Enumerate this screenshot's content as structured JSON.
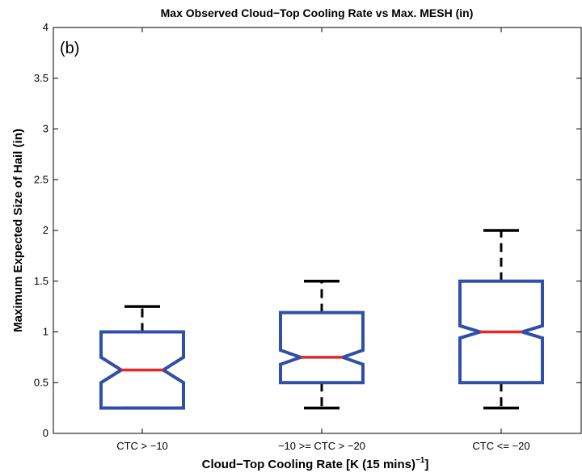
{
  "chart_data": {
    "type": "box",
    "title": "Max Observed Cloud−Top Cooling Rate vs Max. MESH (in)",
    "panel_label": "(b)",
    "xlabel_main": "Cloud−Top Cooling Rate [K (15 mins)",
    "xlabel_sup": "−1",
    "xlabel_end": "]",
    "ylabel": "Maximum Expected Size of Hail (in)",
    "ylim": [
      0,
      4
    ],
    "yticks": [
      "0",
      "0.5",
      "1",
      "1.5",
      "2",
      "2.5",
      "3",
      "3.5",
      "4"
    ],
    "categories": [
      "CTC > −10",
      "−10 >= CTC > −20",
      "CTC <= −20"
    ],
    "boxes": [
      {
        "whisker_low": 0.25,
        "q1": 0.25,
        "notch_low": 0.5,
        "median": 0.625,
        "notch_high": 0.75,
        "q3": 1.0,
        "whisker_high": 1.25
      },
      {
        "whisker_low": 0.25,
        "q1": 0.5,
        "notch_low": 0.68,
        "median": 0.75,
        "notch_high": 0.82,
        "q3": 1.19,
        "whisker_high": 1.5
      },
      {
        "whisker_low": 0.25,
        "q1": 0.5,
        "notch_low": 0.94,
        "median": 1.0,
        "notch_high": 1.06,
        "q3": 1.5,
        "whisker_high": 2.0
      }
    ],
    "colors": {
      "box": "#2f4fa8",
      "median": "#e8262a",
      "whisker": "#000000"
    }
  }
}
